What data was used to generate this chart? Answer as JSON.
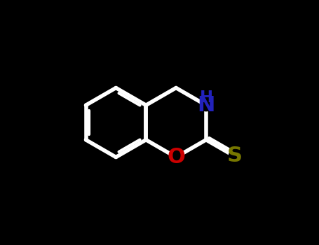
{
  "background_color": "#000000",
  "bond_color": "#ffffff",
  "N_color": "#2222bb",
  "O_color": "#cc0000",
  "S_color": "#777700",
  "bond_width": 4.0,
  "figsize": [
    4.55,
    3.5
  ],
  "dpi": 100,
  "xlim": [
    -2.8,
    2.8
  ],
  "ylim": [
    -2.5,
    2.5
  ],
  "font_size": 22
}
